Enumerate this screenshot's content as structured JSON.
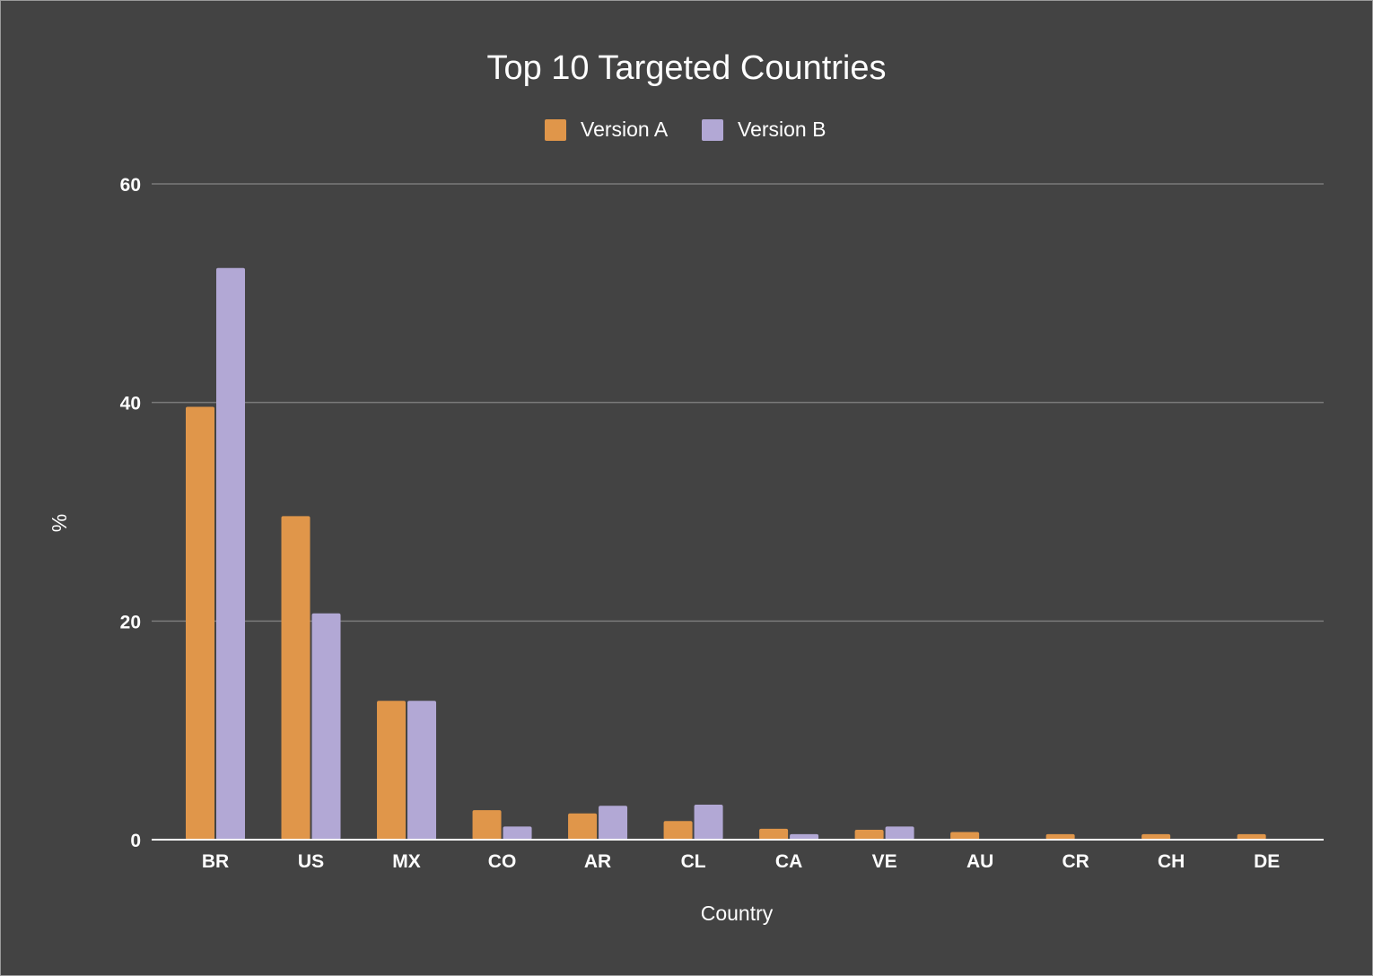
{
  "chart_data": {
    "type": "bar",
    "title": "Top 10 Targeted Countries",
    "xlabel": "Country",
    "ylabel": "%",
    "ylim": [
      0,
      60
    ],
    "yticks": [
      0,
      20,
      40,
      60
    ],
    "grid": true,
    "legend_position": "top",
    "categories": [
      "BR",
      "US",
      "MX",
      "CO",
      "AR",
      "CL",
      "CA",
      "VE",
      "AU",
      "CR",
      "CH",
      "DE"
    ],
    "series": [
      {
        "name": "Version A",
        "color": "#e0964a",
        "values": [
          39.6,
          29.6,
          12.7,
          2.7,
          2.4,
          1.7,
          1.0,
          0.9,
          0.7,
          0.5,
          0.5,
          0.5
        ]
      },
      {
        "name": "Version B",
        "color": "#b2a8d5",
        "values": [
          52.3,
          20.7,
          12.7,
          1.2,
          3.1,
          3.2,
          0.5,
          1.2,
          0,
          0,
          0,
          0
        ]
      }
    ],
    "colors": {
      "background": "#434343",
      "gridline": "#7a7a7a",
      "baseline": "#ffffff",
      "text": "#ffffff"
    }
  }
}
